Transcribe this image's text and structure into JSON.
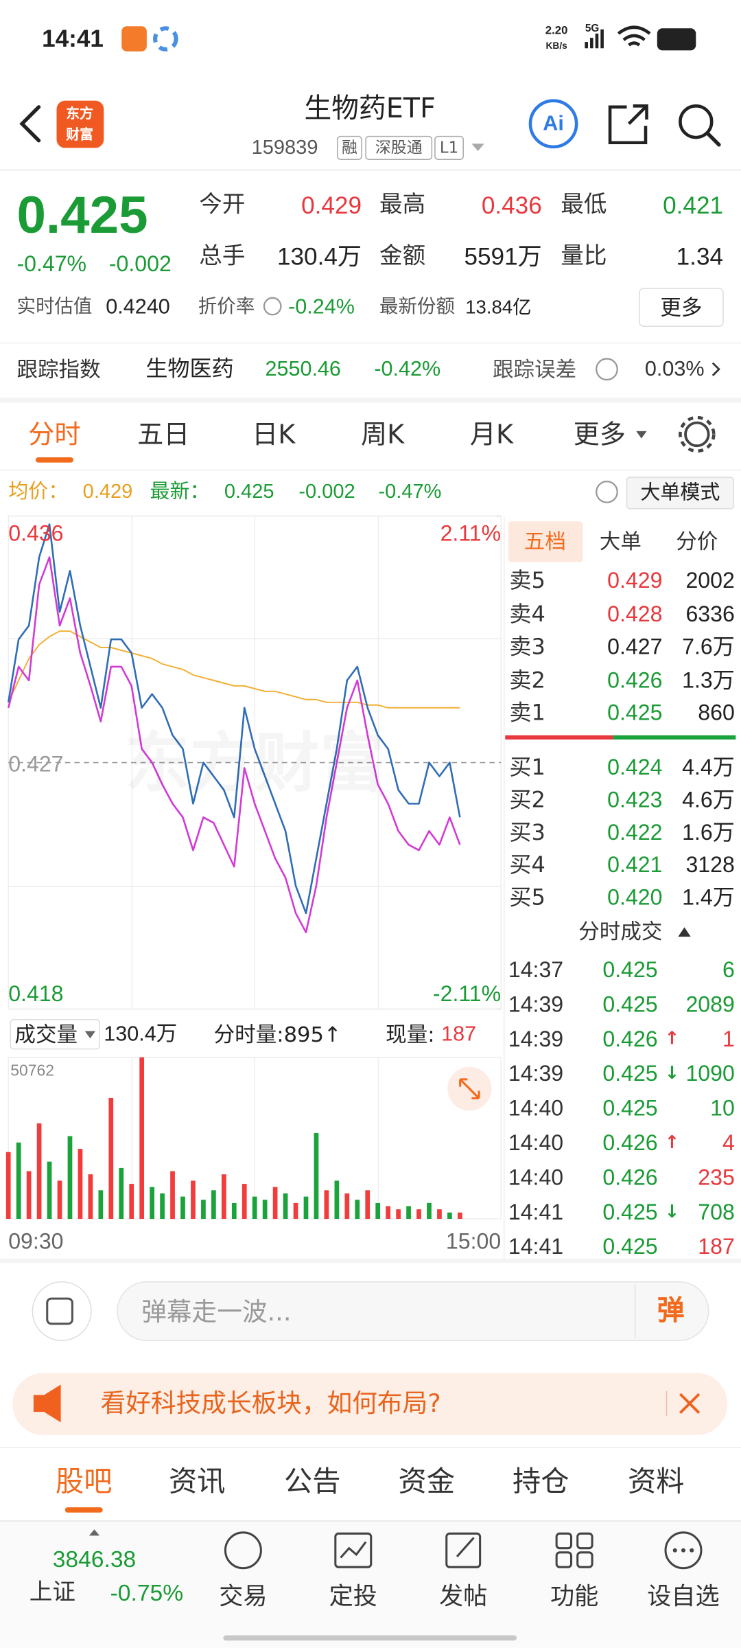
{
  "status_bar": {
    "time": "14:41",
    "speed": "2.20",
    "speed_unit": "KB/s",
    "network": "5G"
  },
  "header": {
    "logo": [
      "东方",
      "财富"
    ],
    "title": "生物药ETF",
    "code": "159839",
    "tags": [
      "融",
      "深股通",
      "L1"
    ],
    "ai": "Ai"
  },
  "quote": {
    "price": "0.425",
    "change_pct": "-0.47%",
    "change": "-0.002",
    "stats": [
      {
        "label": "今开",
        "value": "0.429",
        "color": "#e8383d"
      },
      {
        "label": "最高",
        "value": "0.436",
        "color": "#e8383d"
      },
      {
        "label": "最低",
        "value": "0.421",
        "color": "#1a9b35"
      },
      {
        "label": "总手",
        "value": "130.4万",
        "color": "#222222"
      },
      {
        "label": "金额",
        "value": "5591万",
        "color": "#222222"
      },
      {
        "label": "量比",
        "value": "1.34",
        "color": "#222222"
      }
    ],
    "estimate_label": "实时估值",
    "estimate": "0.4240",
    "discount_label": "折价率",
    "discount": "-0.24%",
    "shares_label": "最新份额",
    "shares": "13.84亿",
    "more": "更多"
  },
  "tracking": {
    "label": "跟踪指数",
    "index_name": "生物医药",
    "index_value": "2550.46",
    "index_change": "-0.42%",
    "error_label": "跟踪误差",
    "error_value": "0.03%"
  },
  "chart_tabs": [
    "分时",
    "五日",
    "日K",
    "周K",
    "月K",
    "更多"
  ],
  "chart_summary": {
    "avg_label": "均价：",
    "avg": "0.429",
    "latest_label": "最新：",
    "latest": "0.425",
    "change": "-0.002",
    "change_pct": "-0.47%",
    "mode_button": "大单模式"
  },
  "chart_data": [
    {
      "type": "line",
      "ylim": [
        0.418,
        0.436
      ],
      "yticks": [
        0.418,
        0.427,
        0.436
      ],
      "y2lim": [
        -2.11,
        2.11
      ],
      "y2ticks": [
        {
          "value": -2.11,
          "label": "-2.11%"
        },
        {
          "value": 2.11,
          "label": "2.11%"
        }
      ],
      "series": [
        {
          "color": "#2f6db5",
          "values": [
            0.4292,
            0.4315,
            0.432,
            0.4345,
            0.4357,
            0.4325,
            0.434,
            0.432,
            0.4305,
            0.429,
            0.4315,
            0.4315,
            0.431,
            0.429,
            0.4295,
            0.429,
            0.428,
            0.4275,
            0.4255,
            0.427,
            0.4265,
            0.426,
            0.425,
            0.429,
            0.4275,
            0.4265,
            0.4255,
            0.4245,
            0.4225,
            0.4215,
            0.4235,
            0.4255,
            0.4275,
            0.43,
            0.4305,
            0.429,
            0.428,
            0.4275,
            0.426,
            0.4255,
            0.4255,
            0.427,
            0.4265,
            0.427,
            0.425,
            null,
            null,
            null,
            null
          ]
        },
        {
          "color": "#f2b035",
          "values": [
            0.4292,
            0.43,
            0.4308,
            0.4313,
            0.4316,
            0.4318,
            0.4318,
            0.4316,
            0.4314,
            0.4312,
            0.4312,
            0.4311,
            0.431,
            0.4309,
            0.4308,
            0.4306,
            0.4305,
            0.4304,
            0.4302,
            0.4301,
            0.43,
            0.4299,
            0.4298,
            0.4298,
            0.4297,
            0.4296,
            0.4296,
            0.4295,
            0.4294,
            0.4293,
            0.4293,
            0.4292,
            0.4292,
            0.4292,
            0.4292,
            0.4291,
            0.4291,
            0.429,
            0.429,
            0.429,
            0.429,
            0.429,
            0.429,
            0.429,
            0.429,
            null,
            null,
            null,
            null
          ]
        },
        {
          "color": "#d23ad6",
          "values": [
            0.429,
            0.4305,
            0.43,
            0.4335,
            0.4345,
            0.432,
            0.433,
            0.431,
            0.4298,
            0.4285,
            0.4305,
            0.4305,
            0.4298,
            0.4275,
            0.427,
            0.4262,
            0.4255,
            0.425,
            0.4238,
            0.425,
            0.4248,
            0.424,
            0.4232,
            0.4268,
            0.4255,
            0.4245,
            0.4235,
            0.4228,
            0.4215,
            0.4208,
            0.4225,
            0.425,
            0.427,
            0.429,
            0.43,
            0.428,
            0.4262,
            0.4255,
            0.4245,
            0.424,
            0.4238,
            0.4245,
            0.424,
            0.425,
            0.424,
            null,
            null,
            null,
            null
          ]
        }
      ]
    },
    {
      "type": "bar",
      "categories": [
        "09:30",
        null,
        null,
        null,
        null,
        null,
        null,
        null,
        null,
        null,
        null,
        null,
        null,
        null,
        null,
        null,
        null,
        null,
        null,
        null,
        null,
        null,
        null,
        null,
        null,
        null,
        null,
        null,
        null,
        null,
        null,
        null,
        null,
        null,
        null,
        null,
        null,
        null,
        null,
        null,
        null,
        null,
        null,
        null,
        null,
        null,
        null,
        null,
        "15:00"
      ],
      "values": [
        21000,
        24000,
        15000,
        30000,
        18000,
        12000,
        26000,
        22000,
        14000,
        9000,
        38000,
        16000,
        11000,
        50762,
        10000,
        8000,
        15000,
        7000,
        12000,
        6000,
        9000,
        14000,
        5000,
        11000,
        7000,
        6000,
        10000,
        8000,
        5000,
        7000,
        27000,
        9000,
        12000,
        8000,
        6000,
        9000,
        5000,
        4000,
        3000,
        4000,
        3000,
        5000,
        3000,
        2000,
        2000,
        null,
        null,
        null,
        null
      ],
      "colors": [
        "#f23c3c",
        "#1aa33a",
        "#f23c3c",
        "#f23c3c",
        "#1aa33a",
        "#f23c3c",
        "#1aa33a",
        "#f23c3c",
        "#f23c3c",
        "#1aa33a",
        "#f23c3c",
        "#1aa33a",
        "#f23c3c",
        "#f23c3c",
        "#1aa33a",
        "#1aa33a",
        "#f23c3c",
        "#1aa33a",
        "#f23c3c",
        "#1aa33a",
        "#1aa33a",
        "#f23c3c",
        "#1aa33a",
        "#f23c3c",
        "#1aa33a",
        "#1aa33a",
        "#f23c3c",
        "#1aa33a",
        "#f23c3c",
        "#1aa33a",
        "#1aa33a",
        "#f23c3c",
        "#1aa33a",
        "#f23c3c",
        "#1aa33a",
        "#f23c3c",
        "#1aa33a",
        "#f23c3c",
        "#f23c3c",
        "#1aa33a",
        "#f23c3c",
        "#1aa33a",
        "#f23c3c",
        "#1aa33a",
        "#f23c3c",
        null,
        null,
        null,
        null
      ],
      "ylim": [
        0,
        50762
      ],
      "yticks": [
        50762
      ]
    }
  ],
  "volume_header": {
    "label": "成交量",
    "total": "130.4万",
    "minute_volume": "分时量:895↑",
    "current_label": "现量:",
    "current": "187"
  },
  "order_book": {
    "tabs": [
      "五档",
      "大单",
      "分价"
    ],
    "asks": [
      {
        "label": "卖5",
        "price": "0.429",
        "volume": "2002",
        "price_color": "#e8383d"
      },
      {
        "label": "卖4",
        "price": "0.428",
        "volume": "6336",
        "price_color": "#e8383d"
      },
      {
        "label": "卖3",
        "price": "0.427",
        "volume": "7.6万",
        "price_color": "#222222"
      },
      {
        "label": "卖2",
        "price": "0.426",
        "volume": "1.3万",
        "price_color": "#1a9b35"
      },
      {
        "label": "卖1",
        "price": "0.425",
        "volume": "860",
        "price_color": "#1a9b35"
      }
    ],
    "bids": [
      {
        "label": "买1",
        "price": "0.424",
        "volume": "4.4万",
        "price_color": "#1a9b35"
      },
      {
        "label": "买2",
        "price": "0.423",
        "volume": "4.6万",
        "price_color": "#1a9b35"
      },
      {
        "label": "买3",
        "price": "0.422",
        "volume": "1.6万",
        "price_color": "#1a9b35"
      },
      {
        "label": "买4",
        "price": "0.421",
        "volume": "3128",
        "price_color": "#1a9b35"
      },
      {
        "label": "买5",
        "price": "0.420",
        "volume": "1.4万",
        "price_color": "#1a9b35"
      }
    ],
    "trades_title": "分时成交",
    "trades": [
      {
        "time": "14:37",
        "price": "0.425",
        "volume": "6",
        "volume_color": "#1a9b35"
      },
      {
        "time": "14:39",
        "price": "0.425",
        "volume": "2089",
        "volume_color": "#1a9b35"
      },
      {
        "time": "14:39",
        "price": "0.426",
        "arrow": "↑",
        "volume": "1",
        "volume_color": "#e8383d"
      },
      {
        "time": "14:39",
        "price": "0.425",
        "arrow": "↓",
        "volume": "1090",
        "volume_color": "#1a9b35"
      },
      {
        "time": "14:40",
        "price": "0.425",
        "volume": "10",
        "volume_color": "#1a9b35"
      },
      {
        "time": "14:40",
        "price": "0.426",
        "arrow": "↑",
        "volume": "4",
        "volume_color": "#e8383d"
      },
      {
        "time": "14:40",
        "price": "0.426",
        "volume": "235",
        "volume_color": "#e8383d"
      },
      {
        "time": "14:41",
        "price": "0.425",
        "arrow": "↓",
        "volume": "708",
        "volume_color": "#1a9b35"
      },
      {
        "time": "14:41",
        "price": "0.425",
        "volume": "187",
        "volume_color": "#e8383d"
      }
    ]
  },
  "comment_bar": {
    "placeholder": "弹幕走一波...",
    "button": "弹"
  },
  "banner": {
    "text": "看好科技成长板块，如何布局?"
  },
  "section_tabs": [
    "股吧",
    "资讯",
    "公告",
    "资金",
    "持仓",
    "资料"
  ],
  "bottom_nav": {
    "index_value": "3846.38",
    "index_name": "上证",
    "index_change": "-0.75%",
    "items": [
      "交易",
      "定投",
      "发帖",
      "功能",
      "设自选"
    ]
  },
  "watermark": "东方财富"
}
